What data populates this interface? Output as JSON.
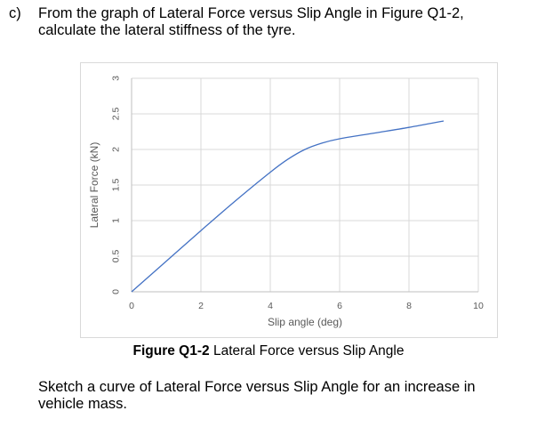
{
  "question": {
    "letter": "c)",
    "text": "From the graph of Lateral Force versus Slip Angle in Figure Q1-2, calculate the lateral stiffness of the tyre."
  },
  "caption": {
    "figure_label": "Figure Q1-2",
    "title": " Lateral Force versus Slip Angle"
  },
  "sketch_instruction": "Sketch a curve of Lateral Force versus Slip Angle for an increase in vehicle mass.",
  "chart_data": {
    "type": "line",
    "title": "",
    "xlabel": "Slip angle (deg)",
    "ylabel": "Lateral Force (kN)",
    "xlim": [
      0,
      10
    ],
    "ylim": [
      0,
      3
    ],
    "xticks": [
      "0",
      "2",
      "4",
      "6",
      "8",
      "10"
    ],
    "yticks": [
      "0",
      "0.5",
      "1",
      "1.5",
      "2",
      "2.5",
      "3"
    ],
    "grid": true,
    "legend": "none",
    "line_color": "#4472c4",
    "series": [
      {
        "x": [
          0,
          1,
          2,
          3,
          4,
          4.5,
          5,
          5.5,
          6,
          7,
          8,
          9
        ],
        "y": [
          0,
          0.43,
          0.86,
          1.28,
          1.68,
          1.86,
          2.0,
          2.09,
          2.15,
          2.23,
          2.31,
          2.4
        ]
      }
    ]
  }
}
